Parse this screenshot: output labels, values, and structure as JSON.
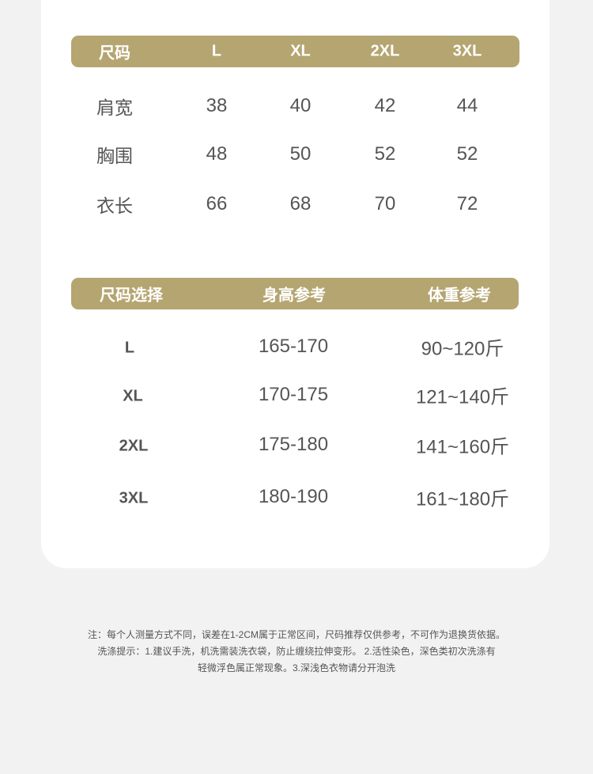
{
  "table1": {
    "headers": [
      "尺码",
      "L",
      "XL",
      "2XL",
      "3XL"
    ],
    "rows": [
      {
        "label": "肩宽",
        "values": [
          "38",
          "40",
          "42",
          "44"
        ]
      },
      {
        "label": "胸围",
        "values": [
          "48",
          "50",
          "52",
          "52"
        ]
      },
      {
        "label": "衣长",
        "values": [
          "66",
          "68",
          "70",
          "72"
        ]
      }
    ]
  },
  "table2": {
    "headers": [
      "尺码选择",
      "身高参考",
      "体重参考"
    ],
    "rows": [
      {
        "size": "L",
        "height": "165-170",
        "weight": "90~120斤"
      },
      {
        "size": "XL",
        "height": "170-175",
        "weight": "121~140斤"
      },
      {
        "size": "2XL",
        "height": "175-180",
        "weight": "141~160斤"
      },
      {
        "size": "3XL",
        "height": "180-190",
        "weight": "161~180斤"
      }
    ]
  },
  "footer": {
    "note": "注：每个人测量方式不同，误差在1-2CM属于正常区间，尺码推荐仅供参考，不可作为退换货依据。",
    "wash1": "洗涤提示：1.建议手洗，机洗需装洗衣袋，防止缠绕拉伸变形。 2.活性染色，深色类初次洗涤有",
    "wash2": "轻微浮色属正常现象。3.深浅色衣物请分开泡洗"
  },
  "colors": {
    "header": "#b5a571",
    "background": "#f2f2f2"
  }
}
